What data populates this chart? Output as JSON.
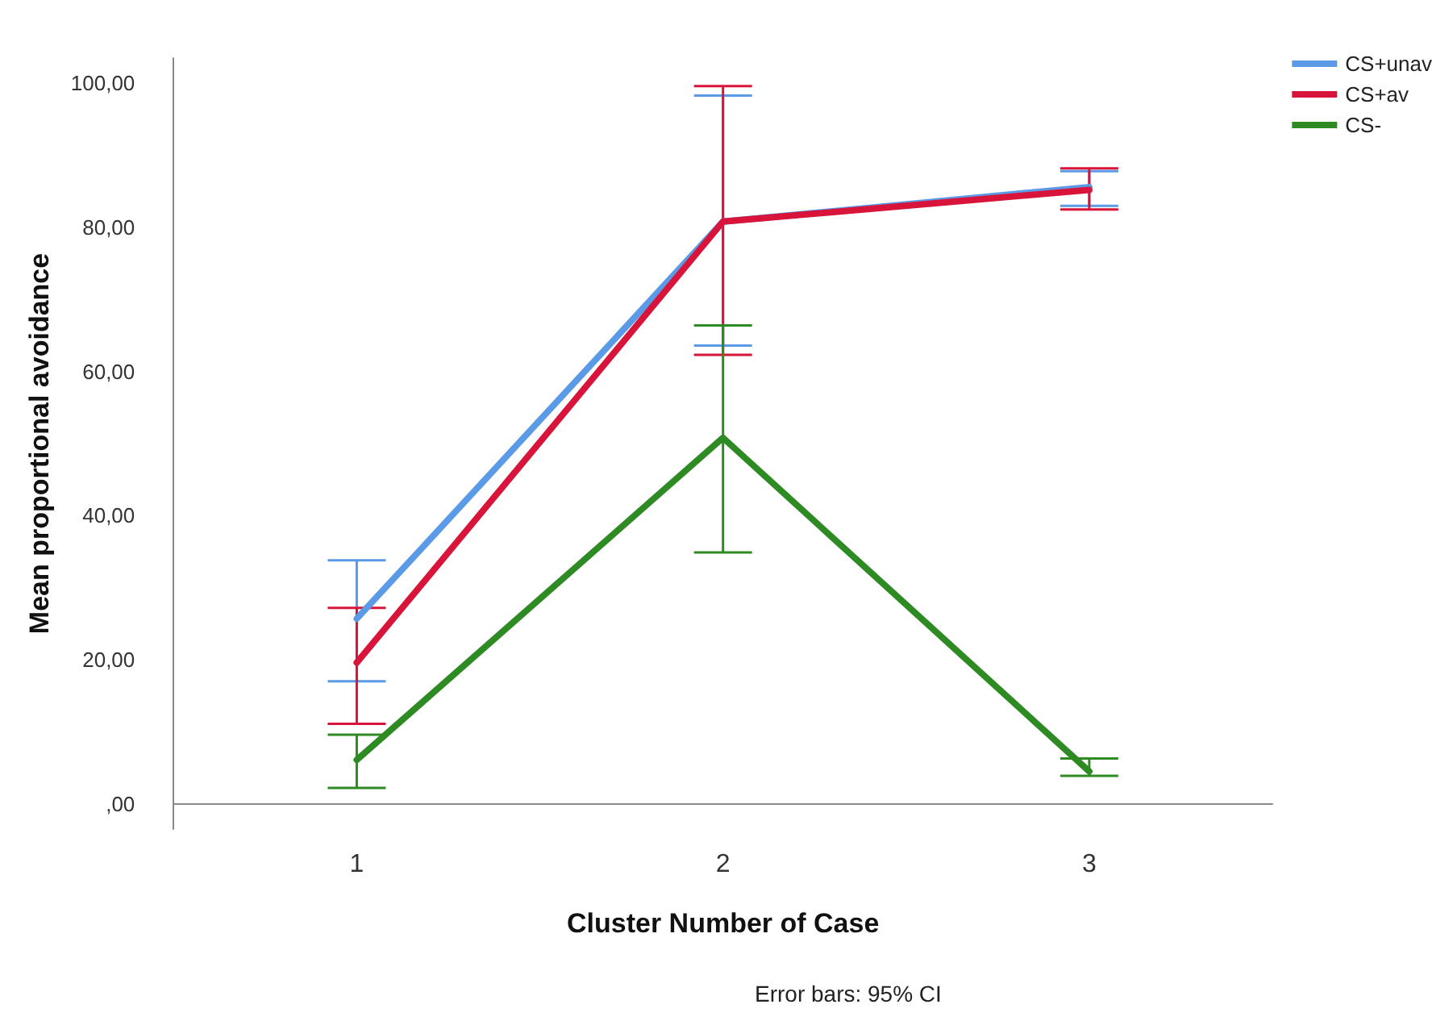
{
  "chart_data": {
    "type": "line",
    "xlabel": "Cluster Number of Case",
    "ylabel": "Mean proportional avoidance",
    "categories": [
      "1",
      "2",
      "3"
    ],
    "series": [
      {
        "name": "CS+unav",
        "color": "#5b9ae6",
        "values": [
          25.7,
          80.8,
          85.6
        ],
        "errors": [
          [
            17,
            33.8
          ],
          [
            63.6,
            98.3
          ],
          [
            83,
            87.8
          ]
        ]
      },
      {
        "name": "CS+av",
        "color": "#d8143a",
        "values": [
          19.6,
          80.8,
          85.2
        ],
        "errors": [
          [
            11.1,
            27.2
          ],
          [
            62.3,
            99.6
          ],
          [
            82.5,
            88.2
          ]
        ]
      },
      {
        "name": "CS-",
        "color": "#2e8b23",
        "values": [
          6.1,
          50.8,
          4.5
        ],
        "errors": [
          [
            2.2,
            9.6
          ],
          [
            34.9,
            66.4
          ],
          [
            3.9,
            6.3
          ]
        ]
      }
    ],
    "ylim": [
      -3.5,
      103.5
    ],
    "yticks": [
      {
        "value": 0,
        "label": ",00"
      },
      {
        "value": 20,
        "label": "20,00"
      },
      {
        "value": 40,
        "label": "40,00"
      },
      {
        "value": 60,
        "label": "60,00"
      },
      {
        "value": 80,
        "label": "80,00"
      },
      {
        "value": 100,
        "label": "100,00"
      }
    ],
    "grid": false,
    "legend": "top right",
    "marker": "none",
    "line_style": "solid",
    "annotations": [
      "Error bars: 95% CI"
    ]
  }
}
